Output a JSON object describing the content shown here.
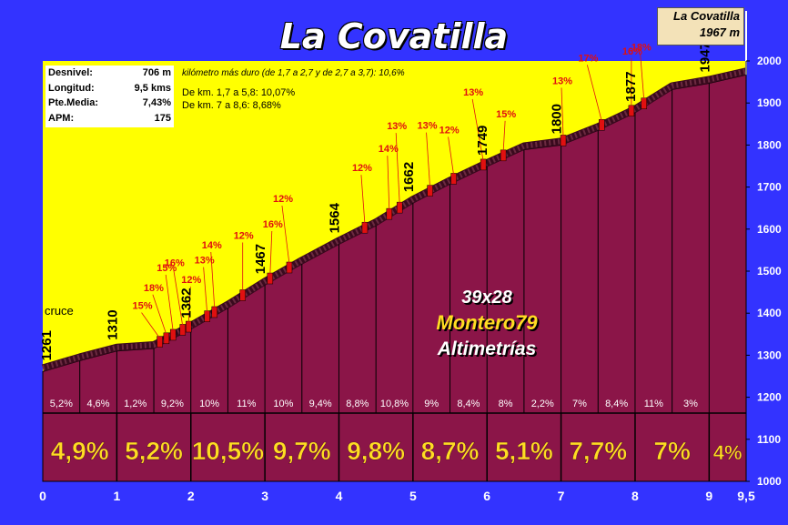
{
  "title": "La Covatilla",
  "stats": [
    {
      "label": "Desnivel:",
      "value": "706 m"
    },
    {
      "label": "Longitud:",
      "value": "9,5 kms"
    },
    {
      "label": "Pte.Media:",
      "value": "7,43%"
    },
    {
      "label": "APM:",
      "value": "175"
    }
  ],
  "hardest_km": "kilómetro más duro (de 1,7 a 2,7 y de 2,7 a 3,7):   10,6%",
  "sections": [
    "De km. 1,7 a 5,8:  10,07%",
    "De km.   7  a 8,6:   8,68%"
  ],
  "summit": {
    "name": "La Covatilla",
    "altitude": "1967 m"
  },
  "credits": {
    "line1": "39x28",
    "line2": "Montero79",
    "line3": "Altimetrías"
  },
  "start_label": "cruce",
  "colors": {
    "background": "#3333ff",
    "sky": "#ffff00",
    "profile": "#8b1548",
    "grade_text": "#ffdd22",
    "steep_marker": "#e01010"
  },
  "chart_data": {
    "type": "area",
    "title": "La Covatilla",
    "xlabel": "",
    "ylabel": "",
    "xlim": [
      0,
      9.5
    ],
    "ylim": [
      1000,
      2000
    ],
    "x_ticks": [
      "0",
      "1",
      "2",
      "3",
      "4",
      "5",
      "6",
      "7",
      "8",
      "9",
      "9,5"
    ],
    "y_ticks": [
      1000,
      1100,
      1200,
      1300,
      1400,
      1500,
      1600,
      1700,
      1800,
      1900,
      2000
    ],
    "profile": {
      "x": [
        0,
        0.5,
        1,
        1.5,
        2,
        2.5,
        3,
        3.5,
        4,
        4.5,
        5,
        5.5,
        6,
        6.5,
        7,
        7.5,
        8,
        8.5,
        9,
        9.5
      ],
      "y": [
        1261,
        1287,
        1310,
        1316,
        1362,
        1412,
        1467,
        1517,
        1564,
        1608,
        1662,
        1707,
        1749,
        1789,
        1800,
        1835,
        1877,
        1932,
        1947,
        1967
      ]
    },
    "altitude_labels": [
      {
        "x": 0,
        "label": "1261"
      },
      {
        "x": 1,
        "label": "1310"
      },
      {
        "x": 2,
        "label": "1362"
      },
      {
        "x": 3,
        "label": "1467"
      },
      {
        "x": 4,
        "label": "1564"
      },
      {
        "x": 5,
        "label": "1662"
      },
      {
        "x": 6,
        "label": "1749"
      },
      {
        "x": 7,
        "label": "1800"
      },
      {
        "x": 8,
        "label": "1877"
      },
      {
        "x": 9,
        "label": "1947"
      }
    ],
    "half_km_grades": [
      "5,2%",
      "4,6%",
      "1,2%",
      "9,2%",
      "10%",
      "11%",
      "10%",
      "9,4%",
      "8,8%",
      "10,8%",
      "9%",
      "8,4%",
      "8%",
      "2,2%",
      "7%",
      "8,4%",
      "11%",
      "3%"
    ],
    "km_grades": [
      "4,9%",
      "5,2%",
      "10,5%",
      "9,7%",
      "9,8%",
      "8,7%",
      "5,1%",
      "7,7%",
      "7%",
      "4%"
    ],
    "steep_markers": [
      {
        "x": 1.58,
        "label": "15%"
      },
      {
        "x": 1.67,
        "label": "18%"
      },
      {
        "x": 1.76,
        "label": "15%"
      },
      {
        "x": 1.97,
        "label": "12%"
      },
      {
        "x": 1.89,
        "label": "16%"
      },
      {
        "x": 2.22,
        "label": "13%"
      },
      {
        "x": 2.32,
        "label": "14%"
      },
      {
        "x": 2.7,
        "label": "12%"
      },
      {
        "x": 3.07,
        "label": "16%"
      },
      {
        "x": 3.33,
        "label": "12%"
      },
      {
        "x": 4.35,
        "label": "12%"
      },
      {
        "x": 4.68,
        "label": "14%"
      },
      {
        "x": 4.82,
        "label": "13%"
      },
      {
        "x": 5.23,
        "label": "13%"
      },
      {
        "x": 5.55,
        "label": "12%"
      },
      {
        "x": 6.22,
        "label": "15%"
      },
      {
        "x": 5.95,
        "label": "13%"
      },
      {
        "x": 7.03,
        "label": "13%"
      },
      {
        "x": 7.55,
        "label": "17%"
      },
      {
        "x": 7.95,
        "label": "16%"
      },
      {
        "x": 8.12,
        "label": "18%"
      }
    ]
  }
}
